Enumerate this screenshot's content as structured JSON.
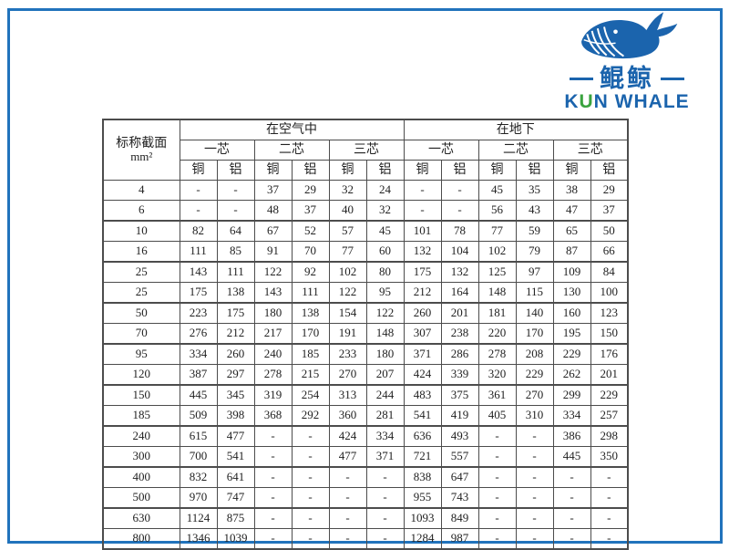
{
  "colors": {
    "frame_blue": "#2173bc",
    "logo_blue": "#1b64ad",
    "logo_green": "#3aa33f",
    "table_border": "#4c4c4c"
  },
  "logo": {
    "brand_cn": "鲲鲸",
    "brand_en_k": "K",
    "brand_en_u": "U",
    "brand_en_rest": "N WHALE"
  },
  "table": {
    "corner_header_line1": "标称截面",
    "corner_header_line2": "mm²",
    "group_headers": [
      "在空气中",
      "在地下"
    ],
    "core_headers": [
      "一芯",
      "二芯",
      "三芯",
      "一芯",
      "二芯",
      "三芯"
    ],
    "material_headers": [
      "铜",
      "铝",
      "铜",
      "铝",
      "铜",
      "铝",
      "铜",
      "铝",
      "铜",
      "铝",
      "铜",
      "铝"
    ],
    "rows": [
      {
        "size": "4",
        "values": [
          "-",
          "-",
          "37",
          "29",
          "32",
          "24",
          "-",
          "-",
          "45",
          "35",
          "38",
          "29"
        ]
      },
      {
        "size": "6",
        "values": [
          "-",
          "-",
          "48",
          "37",
          "40",
          "32",
          "-",
          "-",
          "56",
          "43",
          "47",
          "37"
        ]
      },
      {
        "size": "10",
        "values": [
          "82",
          "64",
          "67",
          "52",
          "57",
          "45",
          "101",
          "78",
          "77",
          "59",
          "65",
          "50"
        ]
      },
      {
        "size": "16",
        "values": [
          "111",
          "85",
          "91",
          "70",
          "77",
          "60",
          "132",
          "104",
          "102",
          "79",
          "87",
          "66"
        ]
      },
      {
        "size": "25",
        "values": [
          "143",
          "111",
          "122",
          "92",
          "102",
          "80",
          "175",
          "132",
          "125",
          "97",
          "109",
          "84"
        ]
      },
      {
        "size": "25",
        "values": [
          "175",
          "138",
          "143",
          "111",
          "122",
          "95",
          "212",
          "164",
          "148",
          "115",
          "130",
          "100"
        ]
      },
      {
        "size": "50",
        "values": [
          "223",
          "175",
          "180",
          "138",
          "154",
          "122",
          "260",
          "201",
          "181",
          "140",
          "160",
          "123"
        ]
      },
      {
        "size": "70",
        "values": [
          "276",
          "212",
          "217",
          "170",
          "191",
          "148",
          "307",
          "238",
          "220",
          "170",
          "195",
          "150"
        ]
      },
      {
        "size": "95",
        "values": [
          "334",
          "260",
          "240",
          "185",
          "233",
          "180",
          "371",
          "286",
          "278",
          "208",
          "229",
          "176"
        ]
      },
      {
        "size": "120",
        "values": [
          "387",
          "297",
          "278",
          "215",
          "270",
          "207",
          "424",
          "339",
          "320",
          "229",
          "262",
          "201"
        ]
      },
      {
        "size": "150",
        "values": [
          "445",
          "345",
          "319",
          "254",
          "313",
          "244",
          "483",
          "375",
          "361",
          "270",
          "299",
          "229"
        ]
      },
      {
        "size": "185",
        "values": [
          "509",
          "398",
          "368",
          "292",
          "360",
          "281",
          "541",
          "419",
          "405",
          "310",
          "334",
          "257"
        ]
      },
      {
        "size": "240",
        "values": [
          "615",
          "477",
          "-",
          "-",
          "424",
          "334",
          "636",
          "493",
          "-",
          "-",
          "386",
          "298"
        ]
      },
      {
        "size": "300",
        "values": [
          "700",
          "541",
          "-",
          "-",
          "477",
          "371",
          "721",
          "557",
          "-",
          "-",
          "445",
          "350"
        ]
      },
      {
        "size": "400",
        "values": [
          "832",
          "641",
          "-",
          "-",
          "-",
          "-",
          "838",
          "647",
          "-",
          "-",
          "-",
          "-"
        ]
      },
      {
        "size": "500",
        "values": [
          "970",
          "747",
          "-",
          "-",
          "-",
          "-",
          "955",
          "743",
          "-",
          "-",
          "-",
          "-"
        ]
      },
      {
        "size": "630",
        "values": [
          "1124",
          "875",
          "-",
          "-",
          "-",
          "-",
          "1093",
          "849",
          "-",
          "-",
          "-",
          "-"
        ]
      },
      {
        "size": "800",
        "values": [
          "1346",
          "1039",
          "-",
          "-",
          "-",
          "-",
          "1284",
          "987",
          "-",
          "-",
          "-",
          "-"
        ]
      }
    ]
  }
}
